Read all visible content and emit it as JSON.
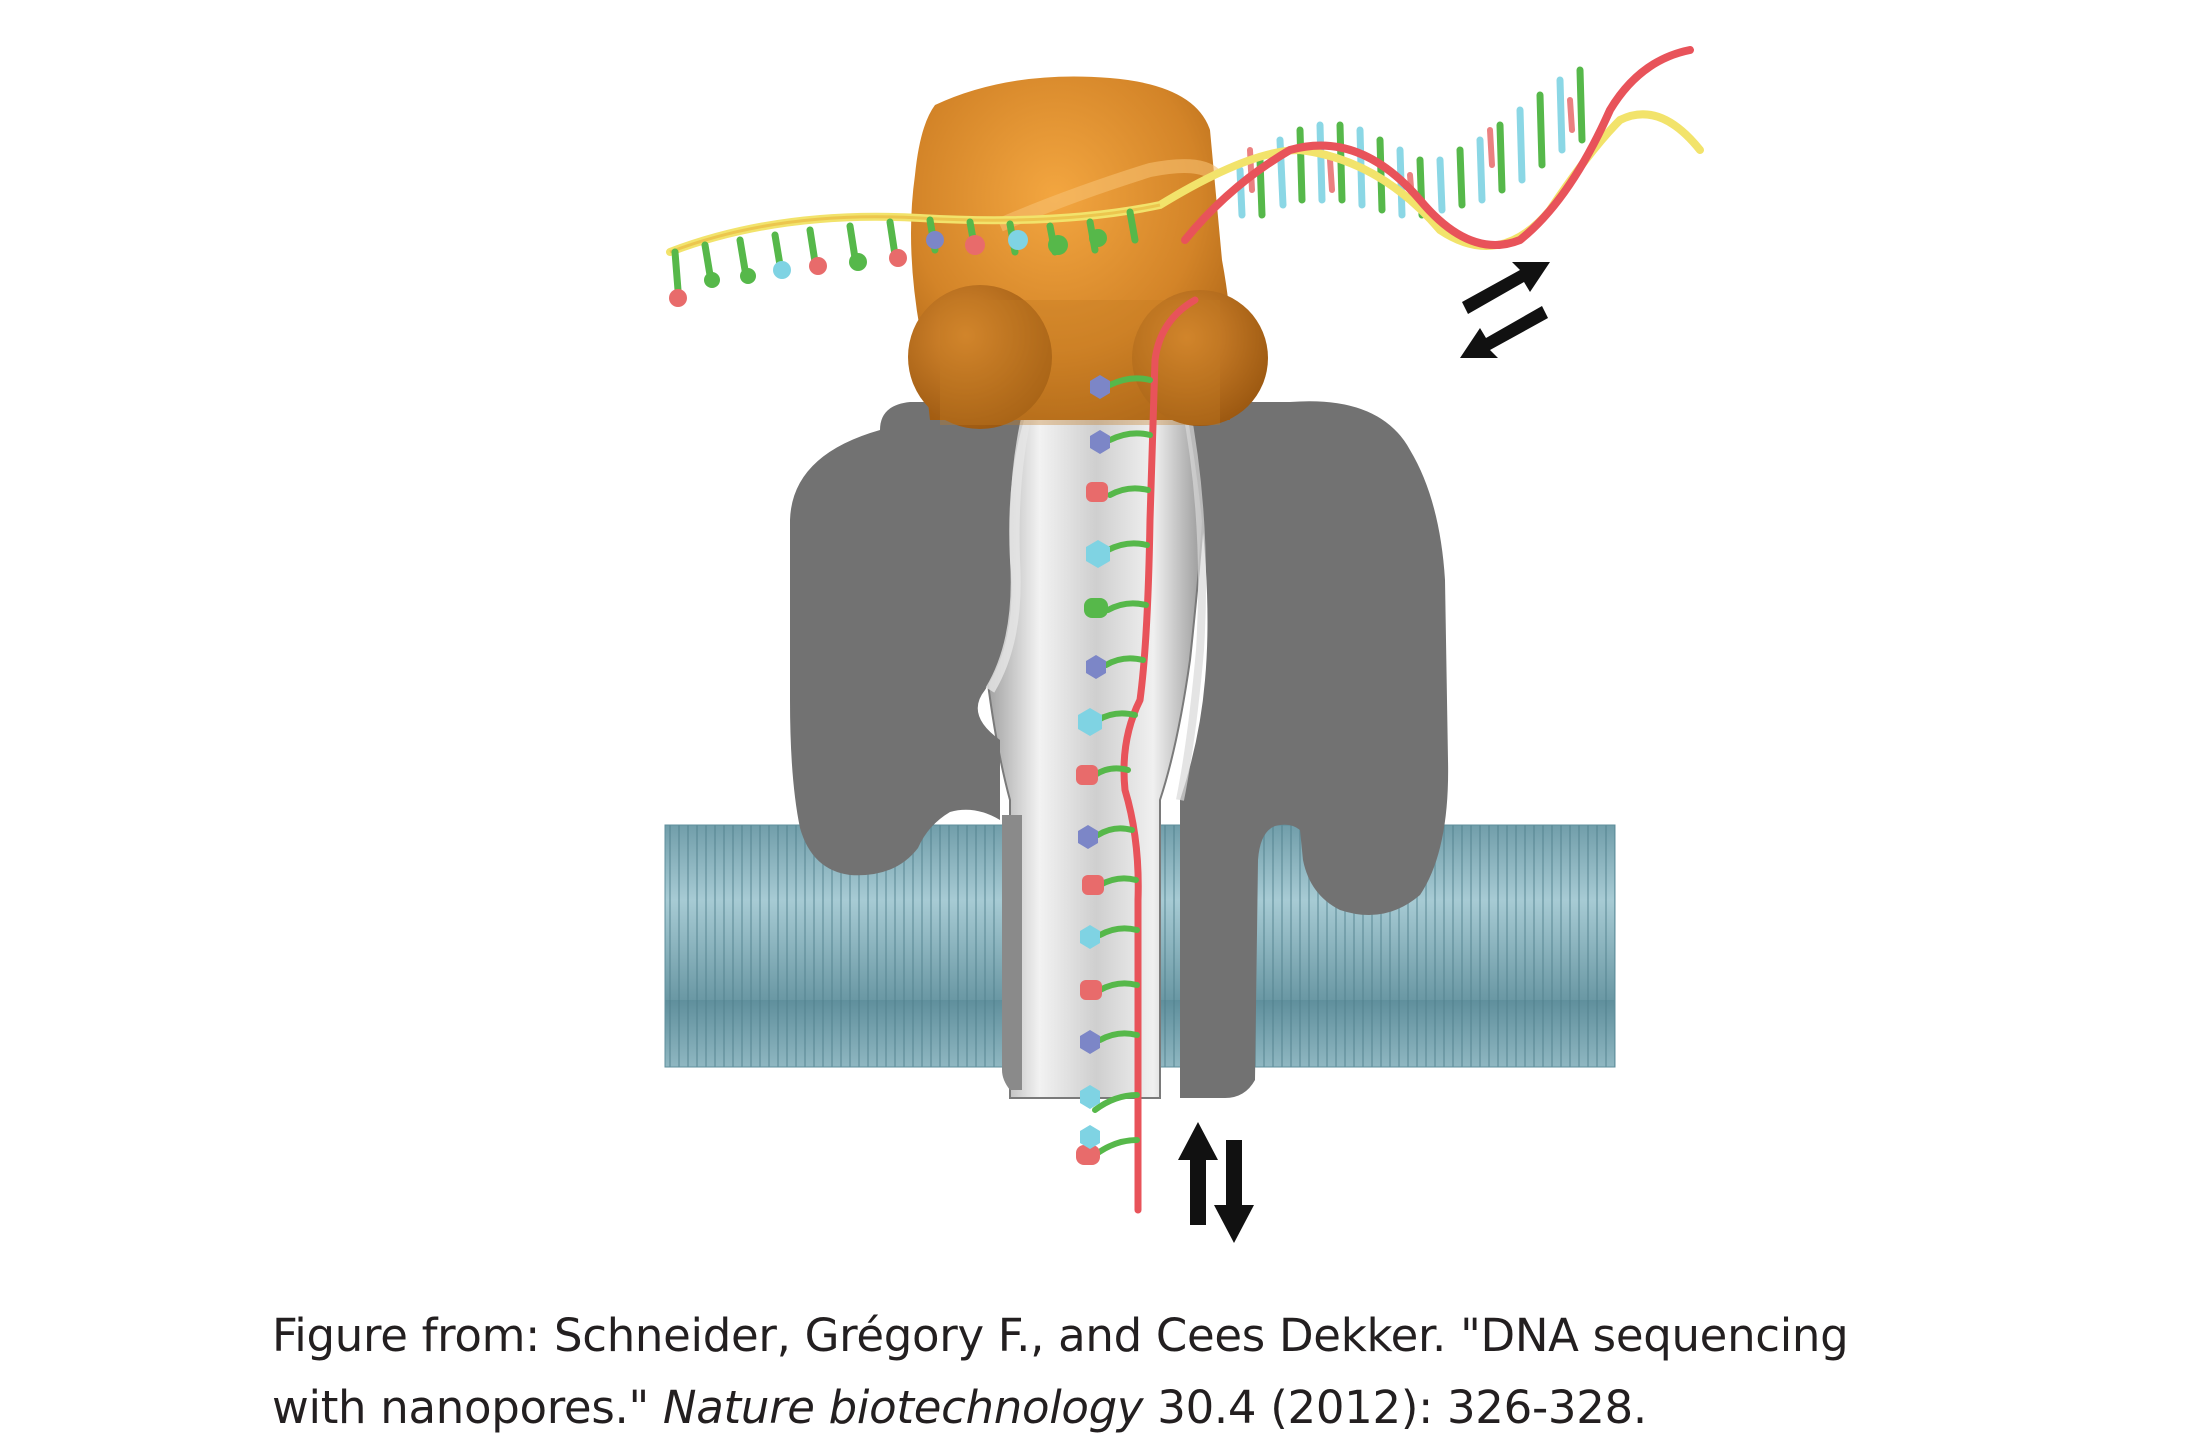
{
  "caption": {
    "line1": "Figure from: Schneider, Grégory F., and Cees Dekker. \"DNA sequencing",
    "line2_prefix": "with nanopores.\" ",
    "journal": "Nature biotechnology",
    "line2_suffix": " 30.4 (2012): 326-328."
  },
  "colors": {
    "enzyme": "#c77a1e",
    "pore": "#6e6e6e",
    "membrane": "#8fb9c4",
    "strand_red": "#e8535a",
    "strand_yellow": "#f2e36b",
    "backbone_green": "#56b84a",
    "base_blue": "#7c86c7",
    "base_cyan": "#7fd3e3",
    "base_red": "#e86b6b",
    "arrow": "#111111"
  },
  "icons": {
    "rate_arrows": "equilibrium-arrows-icon",
    "translocation_arrows": "up-down-arrows-icon"
  }
}
